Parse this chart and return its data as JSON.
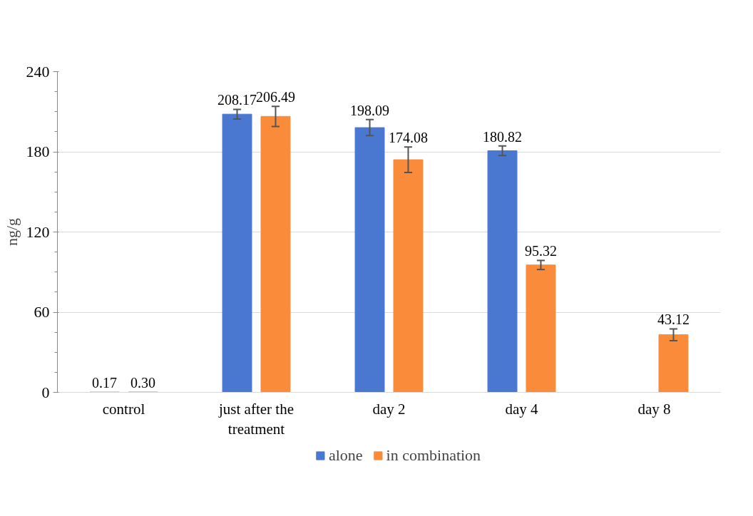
{
  "chart_data": {
    "type": "bar",
    "ylabel": "ng/g",
    "categories": [
      "control",
      "just after the treatment",
      "day 2",
      "day 4",
      "day 8"
    ],
    "series": [
      {
        "name": "alone",
        "color": "#4a78d0",
        "values": [
          0.17,
          208.17,
          198.09,
          180.82,
          null
        ],
        "errors": [
          null,
          3.6,
          6,
          3.6,
          null
        ],
        "value_labels": [
          "0.17",
          "208.17",
          "198.09",
          "180.82",
          null
        ]
      },
      {
        "name": "in combination",
        "color": "#f98b3a",
        "values": [
          0.3,
          206.49,
          174.08,
          95.32,
          43.12
        ],
        "errors": [
          null,
          7.5,
          9.5,
          3.4,
          4.4
        ],
        "value_labels": [
          "0.30",
          "206.49",
          "174.08",
          "95.32",
          "43.12"
        ]
      }
    ],
    "ylim": [
      0,
      240
    ],
    "yticks": [
      0,
      60,
      120,
      180,
      240
    ],
    "grid": "y",
    "legend": "bottom"
  }
}
